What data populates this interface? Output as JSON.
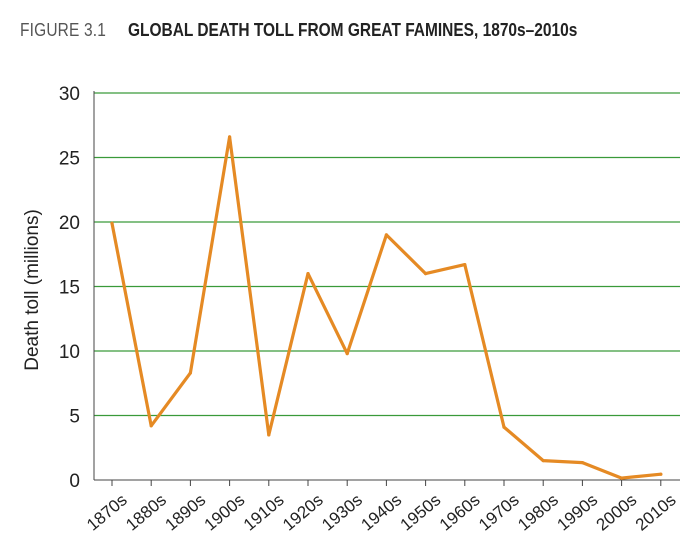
{
  "figure": {
    "label": "FIGURE 3.1",
    "title": "GLOBAL DEATH TOLL FROM GREAT FAMINES, 1870s–2010s"
  },
  "colors": {
    "line": "#E58A24",
    "grid": "#3A9A3A",
    "axis": "#444444",
    "text": "#222222"
  },
  "chart_data": {
    "type": "line",
    "title": "GLOBAL DEATH TOLL FROM GREAT FAMINES, 1870s–2010s",
    "xlabel": "",
    "ylabel": "Death toll (millions)",
    "categories": [
      "1870s",
      "1880s",
      "1890s",
      "1900s",
      "1910s",
      "1920s",
      "1930s",
      "1940s",
      "1950s",
      "1960s",
      "1970s",
      "1980s",
      "1990s",
      "2000s",
      "2010s"
    ],
    "series": [
      {
        "name": "Death toll",
        "values": [
          19.9,
          4.2,
          8.3,
          26.6,
          3.5,
          16.0,
          9.8,
          19.0,
          16.0,
          16.7,
          4.1,
          1.5,
          1.35,
          0.15,
          0.45
        ]
      }
    ],
    "yticks": [
      0,
      5,
      10,
      15,
      20,
      25,
      30
    ],
    "ylim": [
      0,
      30
    ],
    "grid": true
  }
}
